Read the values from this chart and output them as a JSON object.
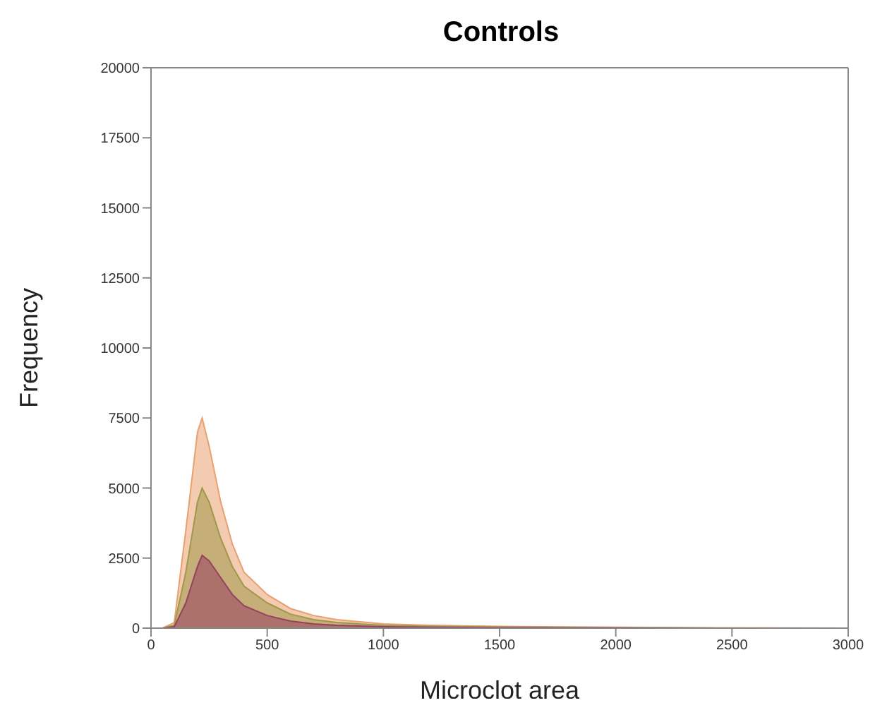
{
  "chart_data": {
    "type": "area",
    "title": "Controls",
    "xlabel": "Microclot area",
    "ylabel": "Frequency",
    "x": [
      0,
      50,
      100,
      150,
      200,
      220,
      250,
      300,
      350,
      400,
      500,
      600,
      700,
      800,
      1000,
      1200,
      1500,
      2000,
      2500,
      3000
    ],
    "series": [
      {
        "color": "#e8a070",
        "values": [
          0,
          0,
          200,
          3500,
          7000,
          7500,
          6500,
          4500,
          3000,
          2000,
          1200,
          700,
          450,
          300,
          150,
          100,
          60,
          30,
          10,
          0
        ]
      },
      {
        "color": "#a09848",
        "values": [
          0,
          0,
          100,
          2000,
          4500,
          5000,
          4500,
          3200,
          2200,
          1500,
          900,
          500,
          300,
          200,
          100,
          60,
          40,
          20,
          0,
          0
        ]
      },
      {
        "color": "#984060",
        "values": [
          0,
          0,
          50,
          900,
          2200,
          2600,
          2400,
          1800,
          1200,
          800,
          450,
          250,
          150,
          100,
          50,
          30,
          20,
          10,
          0,
          0
        ]
      }
    ],
    "xlim": [
      0,
      3000
    ],
    "xticks": [
      0,
      500,
      1000,
      1500,
      2000,
      2500,
      3000
    ],
    "ylim": [
      0,
      20000
    ],
    "yticks": [
      0,
      2500,
      5000,
      7500,
      10000,
      12500,
      15000,
      17500,
      20000
    ],
    "grid": false,
    "legend": false
  }
}
